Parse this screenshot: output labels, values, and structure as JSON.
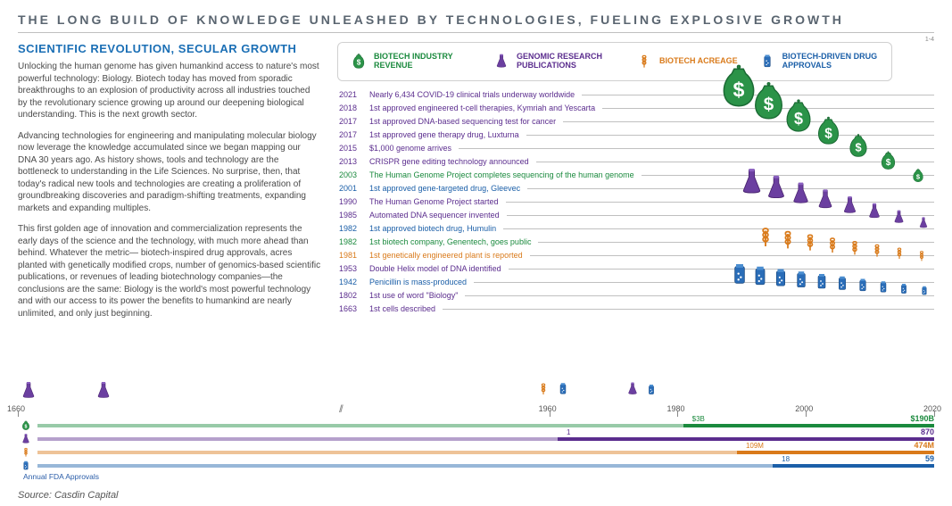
{
  "title": "THE LONG BUILD OF KNOWLEDGE UNLEASHED BY TECHNOLOGIES, FUELING EXPLOSIVE GROWTH",
  "subtitle": "SCIENTIFIC REVOLUTION, SECULAR GROWTH",
  "paragraphs": [
    "Unlocking the human genome has given humankind access to nature's most powerful technology: Biology. Biotech today has moved from sporadic breakthroughs to an explosion of productivity across all industries touched by the revolutionary science growing up around our deepening biological understanding. This is the next growth sector.",
    "Advancing technologies for engineering and manipulating molecular biology now leverage the knowledge accumulated since we began mapping our DNA 30 years ago. As history shows, tools and technology are the bottleneck to understanding in the Life Sciences. No surprise, then, that today's radical new tools and technologies are creating a proliferation of groundbreaking discoveries and paradigm-shifting treatments, expanding markets and expanding multiples.",
    "This first golden age of innovation and commercialization represents the early days of the science and the technology, with much more ahead than behind. Whatever the metric— biotech-inspired drug approvals, acres planted with genetically modified crops, number of genomics-based scientific publications, or revenues of leading biotechnology companies—the conclusions are the same: Biology is the world's most powerful technology and with our access to its power the benefits to humankind are nearly unlimited, and only just beginning."
  ],
  "legend": [
    {
      "name": "revenue",
      "label": "BIOTECH INDUSTRY REVENUE",
      "color": "#1b8a3e"
    },
    {
      "name": "publications",
      "label": "GENOMIC RESEARCH PUBLICATIONS",
      "color": "#5b2d8e"
    },
    {
      "name": "acreage",
      "label": "BIOTECH ACREAGE",
      "color": "#d97a1a"
    },
    {
      "name": "approvals",
      "label": "BIOTECH-DRIVEN DRUG APPROVALS",
      "color": "#1b5fa8"
    }
  ],
  "events": [
    {
      "year": "2021",
      "text": "Nearly 6,434 COVID-19 clinical trials underway worldwide",
      "color": "#5b2d8e"
    },
    {
      "year": "2018",
      "text": "1st approved engineered t-cell therapies, Kymriah and Yescarta",
      "color": "#5b2d8e"
    },
    {
      "year": "2017",
      "text": "1st approved DNA-based sequencing test for cancer",
      "color": "#5b2d8e"
    },
    {
      "year": "2017",
      "text": "1st approved gene therapy drug, Luxturna",
      "color": "#5b2d8e"
    },
    {
      "year": "2015",
      "text": "$1,000 genome arrives",
      "color": "#5b2d8e"
    },
    {
      "year": "2013",
      "text": "CRISPR gene editing technology announced",
      "color": "#5b2d8e"
    },
    {
      "year": "2003",
      "text": "The Human Genome Project completes sequencing of the human genome",
      "color": "#1b8a3e"
    },
    {
      "year": "2001",
      "text": "1st approved gene-targeted drug, Gleevec",
      "color": "#1b5fa8"
    },
    {
      "year": "1990",
      "text": "The Human Genome Project started",
      "color": "#5b2d8e"
    },
    {
      "year": "1985",
      "text": "Automated DNA sequencer invented",
      "color": "#5b2d8e"
    },
    {
      "year": "1982",
      "text": "1st approved biotech drug, Humulin",
      "color": "#1b5fa8"
    },
    {
      "year": "1982",
      "text": "1st biotech company, Genentech, goes public",
      "color": "#1b8a3e"
    },
    {
      "year": "1981",
      "text": "1st genetically engineered plant is reported",
      "color": "#d97a1a"
    },
    {
      "year": "1953",
      "text": "Double Helix model of DNA identified",
      "color": "#5b2d8e"
    },
    {
      "year": "1942",
      "text": "Penicillin is mass-produced",
      "color": "#1b5fa8"
    },
    {
      "year": "1802",
      "text": "1st use of word \"Biology\"",
      "color": "#5b2d8e"
    },
    {
      "year": "1663",
      "text": "1st cells described",
      "color": "#5b2d8e"
    }
  ],
  "axis_years": [
    {
      "label": "1660",
      "x_pct": 0
    },
    {
      "label": "1960",
      "x_pct": 58
    },
    {
      "label": "1980",
      "x_pct": 72
    },
    {
      "label": "2000",
      "x_pct": 86
    },
    {
      "label": "2020",
      "x_pct": 100
    }
  ],
  "bars": [
    {
      "name": "revenue",
      "color": "#1b8a3e",
      "base_end_pct": 72,
      "grow_start_pct": 72,
      "mid_label": "$3B",
      "mid_label_pct": 73,
      "end_label": "$190B"
    },
    {
      "name": "publications",
      "color": "#5b2d8e",
      "base_end_pct": 58,
      "grow_start_pct": 58,
      "mid_label": "1",
      "mid_label_pct": 59,
      "end_label": "870"
    },
    {
      "name": "acreage",
      "color": "#d97a1a",
      "base_end_pct": 78,
      "grow_start_pct": 78,
      "mid_label": "109M",
      "mid_label_pct": 79,
      "end_label": "474M"
    },
    {
      "name": "approvals",
      "color": "#1b5fa8",
      "base_end_pct": 82,
      "grow_start_pct": 82,
      "mid_label": "18",
      "mid_label_pct": 83,
      "end_label": "59"
    }
  ],
  "fda_label": "Annual FDA Approvals",
  "source": "Source: Casdin Capital",
  "footnote": "1-4",
  "colors": {
    "title": "#5a6570",
    "subtitle": "#1b6fb5",
    "body": "#4a4a4a",
    "rule": "#c0c0c0",
    "bg": "#ffffff"
  }
}
